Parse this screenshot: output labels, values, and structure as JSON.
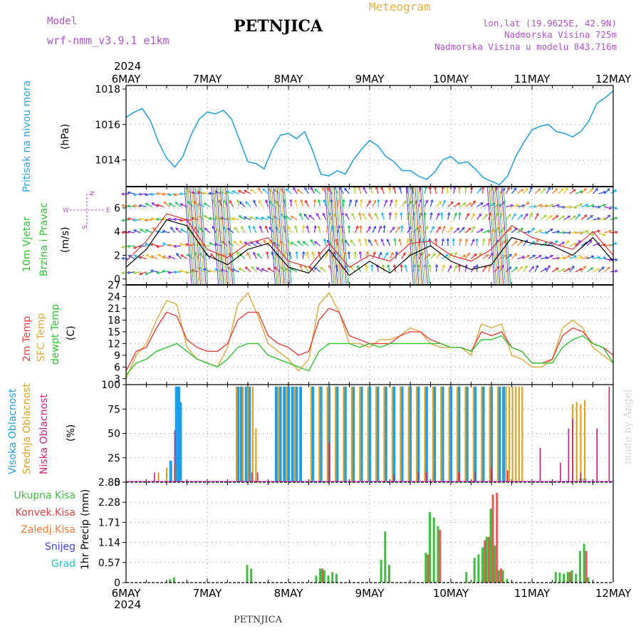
{
  "header": {
    "model_label": "Model",
    "model_name": "wrf-nmm_v3.9.1  e1km",
    "station": "PETNJICA",
    "product": "Meteogram",
    "coords": "lon,lat (19.9625E, 42.9N)",
    "elevation": "Nadmorska Visina 725m",
    "model_elevation": "Nadmorska Visina u modelu 843.716m",
    "year_top": "2024",
    "year_bottom": "2024",
    "footer_station": "PETNJICA",
    "credit": "made by Angel"
  },
  "colors": {
    "pressure": "#29a3e0",
    "temp2m": "#e8403a",
    "sfc_temp": "#e0a83a",
    "dewpt": "#2ec42e",
    "high_cloud": "#1e9ee8",
    "mid_cloud": "#e0a020",
    "low_cloud": "#d0207a",
    "total_precip": "#3cbf3c",
    "conv_precip": "#e04040",
    "grid_precip": "#f07a30",
    "snow": "#4040e0",
    "hail": "#20c0c0",
    "purple_text": "#b050d0",
    "orange_text": "#e8b040"
  },
  "x_axis": {
    "ticks": [
      "6MAY",
      "7MAY",
      "8MAY",
      "9MAY",
      "10MAY",
      "11MAY",
      "12MAY"
    ]
  },
  "panels": {
    "pressure": {
      "ylabel": "Pritisak na nivou mora",
      "unit": "(hPa)",
      "ticks": [
        "1014",
        "1016",
        "1018"
      ]
    },
    "wind": {
      "ylabel1": "10m Vjetar",
      "ylabel2": "Brzina i Pravac",
      "unit": "(m/s)",
      "ticks": [
        "0",
        "2",
        "4",
        "6"
      ],
      "compass": {
        "n": "N",
        "s": "S",
        "w": "W",
        "e": "E"
      }
    },
    "temp": {
      "label1": "2m Temp",
      "label2": "SFC Temp",
      "label3": "dewpt Temp",
      "unit": "(C)",
      "ticks": [
        "3",
        "6",
        "9",
        "12",
        "15",
        "18",
        "21",
        "24",
        "27"
      ]
    },
    "cloud": {
      "label1": "Visoka Oblacnost",
      "label2": "Srednja Oblacnost",
      "label3": "Niska Oblacnost",
      "unit": "(%)",
      "ticks": [
        "0",
        "25",
        "50",
        "75",
        "100"
      ]
    },
    "precip": {
      "legend": [
        "Ukupna Kisa",
        "Konvek.Kisa",
        "Zaledj.Kisa",
        "Snijeg",
        "Grad"
      ],
      "ylabel": "1hr Precip (mm)",
      "ticks": [
        "0",
        "0.57",
        "1.14",
        "1.71",
        "2.28",
        "2.85"
      ]
    }
  },
  "chart_data": [
    {
      "type": "line",
      "title": "Pritisak na nivou mora",
      "ylabel": "(hPa)",
      "ylim": [
        1012.5,
        1018.2
      ],
      "x_range_days": [
        6,
        12
      ],
      "x": [
        6.0,
        6.1,
        6.2,
        6.3,
        6.4,
        6.5,
        6.6,
        6.7,
        6.8,
        6.9,
        7.0,
        7.1,
        7.2,
        7.3,
        7.4,
        7.5,
        7.6,
        7.7,
        7.8,
        7.9,
        8.0,
        8.1,
        8.2,
        8.3,
        8.4,
        8.5,
        8.6,
        8.7,
        8.8,
        8.9,
        9.0,
        9.1,
        9.2,
        9.3,
        9.4,
        9.5,
        9.6,
        9.7,
        9.8,
        9.9,
        10.0,
        10.1,
        10.2,
        10.3,
        10.4,
        10.5,
        10.6,
        10.7,
        10.8,
        10.9,
        11.0,
        11.1,
        11.2,
        11.3,
        11.4,
        11.5,
        11.6,
        11.7,
        11.8,
        11.9,
        12.0
      ],
      "series": [
        {
          "values": [
            1016.4,
            1016.7,
            1016.9,
            1016.2,
            1015.0,
            1014.1,
            1013.6,
            1014.2,
            1015.4,
            1016.3,
            1016.7,
            1016.6,
            1016.8,
            1016.3,
            1015.1,
            1013.9,
            1013.8,
            1013.5,
            1014.6,
            1015.4,
            1015.5,
            1015.2,
            1015.6,
            1014.5,
            1013.2,
            1013.1,
            1013.4,
            1013.2,
            1014.0,
            1014.6,
            1015.1,
            1014.8,
            1014.2,
            1013.9,
            1013.4,
            1013.4,
            1013.1,
            1012.9,
            1013.3,
            1014.0,
            1014.2,
            1013.8,
            1013.9,
            1013.5,
            1013.0,
            1012.8,
            1012.6,
            1013.1,
            1014.2,
            1015.0,
            1015.7,
            1015.9,
            1016.0,
            1015.6,
            1015.5,
            1015.3,
            1015.6,
            1016.2,
            1017.2,
            1017.5,
            1017.9
          ]
        }
      ]
    },
    {
      "type": "line",
      "title": "10m Vjetar Brzina i Pravac",
      "ylabel": "(m/s)",
      "ylim": [
        -0.5,
        7.8
      ],
      "x_range_days": [
        6,
        12
      ],
      "x": [
        6.0,
        6.25,
        6.5,
        6.75,
        7.0,
        7.25,
        7.5,
        7.75,
        8.0,
        8.25,
        8.5,
        8.75,
        9.0,
        9.25,
        9.5,
        9.75,
        10.0,
        10.25,
        10.5,
        10.75,
        11.0,
        11.25,
        11.5,
        11.75,
        12.0
      ],
      "series": [
        {
          "name": "speed",
          "values": [
            1.0,
            2.5,
            5.0,
            4.5,
            2.0,
            1.2,
            2.5,
            3.0,
            1.0,
            0.5,
            2.5,
            0.3,
            1.5,
            0.5,
            2.0,
            2.8,
            1.5,
            0.8,
            1.2,
            3.5,
            3.0,
            2.8,
            2.0,
            3.5,
            1.5
          ]
        },
        {
          "name": "gust",
          "values": [
            1.5,
            3.2,
            5.5,
            5.0,
            2.5,
            1.8,
            3.0,
            3.5,
            1.5,
            1.0,
            3.0,
            1.0,
            2.0,
            1.5,
            3.0,
            3.2,
            2.0,
            1.5,
            2.5,
            4.5,
            3.5,
            3.0,
            2.5,
            4.0,
            2.0
          ]
        }
      ]
    },
    {
      "type": "line",
      "title": "2m Temp / SFC Temp / dewpt Temp",
      "ylabel": "(C)",
      "ylim": [
        1.5,
        27
      ],
      "x_range_days": [
        6,
        12
      ],
      "x": [
        6.0,
        6.125,
        6.25,
        6.375,
        6.5,
        6.625,
        6.75,
        6.875,
        7.0,
        7.125,
        7.25,
        7.375,
        7.5,
        7.625,
        7.75,
        7.875,
        8.0,
        8.125,
        8.25,
        8.375,
        8.5,
        8.625,
        8.75,
        8.875,
        9.0,
        9.125,
        9.25,
        9.375,
        9.5,
        9.625,
        9.75,
        9.875,
        10.0,
        10.125,
        10.25,
        10.375,
        10.5,
        10.625,
        10.75,
        10.875,
        11.0,
        11.125,
        11.25,
        11.375,
        11.5,
        11.625,
        11.75,
        11.875,
        12.0
      ],
      "series": [
        {
          "name": "2m Temp",
          "values": [
            5,
            10,
            11,
            16,
            20,
            19,
            13,
            11,
            10,
            10,
            12,
            18,
            20,
            20,
            14,
            12,
            11,
            9,
            10,
            18,
            21,
            20,
            14,
            13,
            12,
            12,
            12,
            14,
            15,
            15,
            13,
            12,
            11,
            11,
            10,
            15,
            14,
            15,
            11,
            10,
            7,
            7,
            8,
            14,
            16,
            15,
            12,
            11,
            9
          ]
        },
        {
          "name": "SFC Temp",
          "values": [
            3,
            9,
            12,
            18,
            23,
            22,
            11,
            8,
            7,
            6,
            11,
            22,
            25,
            19,
            12,
            10,
            8,
            5,
            8,
            22,
            25,
            20,
            12,
            12,
            11,
            13,
            13,
            14,
            16,
            15,
            12,
            11,
            11,
            11,
            9,
            17,
            16,
            17,
            9,
            8,
            6,
            6,
            8,
            16,
            18,
            16,
            11,
            9,
            7
          ]
        },
        {
          "name": "dewpt Temp",
          "values": [
            4,
            7,
            8,
            10,
            11,
            12,
            10,
            8,
            7,
            6,
            8,
            11,
            12,
            12,
            9,
            8,
            7,
            6,
            5,
            10,
            12,
            12,
            12,
            11,
            12,
            11,
            12,
            12,
            12,
            12,
            12,
            12,
            11,
            11,
            10,
            13,
            13,
            14,
            11,
            10,
            7,
            7,
            7,
            11,
            13,
            14,
            12,
            11,
            7
          ]
        }
      ]
    },
    {
      "type": "bar",
      "title": "Visoka / Srednja / Niska Oblacnost",
      "ylabel": "(%)",
      "ylim": [
        0,
        100
      ],
      "x_range_days": [
        6,
        12
      ],
      "series": [
        {
          "name": "Visoka Oblacnost",
          "x": [
            6.55,
            6.62,
            6.65,
            6.67,
            7.38,
            7.42,
            7.48,
            7.52,
            7.85,
            7.9,
            7.95,
            8.0,
            8.05,
            8.1,
            8.15,
            8.3,
            8.4,
            8.5,
            8.6,
            8.7,
            8.8,
            8.9,
            9.0,
            9.1,
            9.2,
            9.3,
            9.4,
            9.5,
            9.6,
            9.7,
            9.8,
            9.9,
            10.0,
            10.1,
            10.2,
            10.3,
            10.4,
            10.5,
            10.6,
            10.65,
            11.6,
            11.65
          ],
          "values": [
            22,
            98,
            98,
            82,
            98,
            98,
            98,
            98,
            98,
            98,
            98,
            98,
            98,
            98,
            98,
            98,
            98,
            98,
            98,
            98,
            98,
            98,
            98,
            98,
            98,
            98,
            98,
            98,
            98,
            98,
            98,
            98,
            98,
            98,
            98,
            98,
            98,
            98,
            98,
            98,
            4,
            4
          ]
        },
        {
          "name": "Srednja Oblacnost",
          "x": [
            6.4,
            6.5,
            6.6,
            7.36,
            7.44,
            7.5,
            7.56,
            7.6,
            7.88,
            7.98,
            8.08,
            8.28,
            8.38,
            8.48,
            8.58,
            8.68,
            8.78,
            8.88,
            8.98,
            9.08,
            9.18,
            9.28,
            9.38,
            9.48,
            9.58,
            9.68,
            9.78,
            9.88,
            9.98,
            10.08,
            10.18,
            10.28,
            10.38,
            10.48,
            10.58,
            10.68,
            10.72,
            10.76,
            10.8,
            10.84,
            10.88,
            11.5,
            11.55,
            11.6,
            11.65
          ],
          "values": [
            10,
            15,
            18,
            98,
            98,
            98,
            98,
            55,
            98,
            98,
            98,
            98,
            98,
            98,
            98,
            98,
            98,
            98,
            98,
            98,
            98,
            98,
            98,
            98,
            98,
            98,
            98,
            98,
            98,
            98,
            98,
            98,
            98,
            98,
            98,
            98,
            98,
            98,
            98,
            98,
            98,
            80,
            82,
            80,
            84
          ]
        },
        {
          "name": "Niska Oblacnost",
          "x": [
            6.35,
            6.6,
            7.55,
            7.62,
            8.5,
            9.3,
            9.6,
            9.7,
            10.1,
            10.3,
            10.5,
            10.7,
            11.1,
            11.35,
            11.45,
            11.5,
            11.6,
            11.8,
            11.95
          ],
          "values": [
            10,
            53,
            10,
            10,
            40,
            8,
            10,
            10,
            10,
            10,
            15,
            12,
            35,
            20,
            55,
            65,
            10,
            55,
            98
          ]
        }
      ]
    },
    {
      "type": "bar",
      "title": "1hr Precip",
      "ylabel": "1hr Precip (mm)",
      "ylim": [
        0,
        2.85
      ],
      "x_range_days": [
        6,
        12
      ],
      "series": [
        {
          "name": "Ukupna Kisa",
          "x": [
            6.55,
            6.6,
            7.5,
            7.55,
            8.35,
            8.4,
            8.45,
            8.5,
            8.55,
            8.6,
            9.15,
            9.2,
            9.25,
            9.7,
            9.75,
            9.8,
            9.85,
            10.2,
            10.3,
            10.35,
            10.4,
            10.45,
            10.5,
            10.55,
            10.6,
            10.65,
            10.7,
            11.3,
            11.35,
            11.4,
            11.45,
            11.5,
            11.55,
            11.6,
            11.65,
            11.7
          ],
          "values": [
            0.1,
            0.15,
            0.5,
            0.4,
            0.2,
            0.4,
            0.35,
            0.2,
            0.3,
            0.25,
            0.65,
            1.45,
            0.5,
            0.85,
            2.0,
            1.85,
            1.6,
            0.3,
            0.7,
            0.8,
            1.0,
            1.3,
            2.1,
            1.05,
            0.35,
            0.35,
            0.1,
            0.3,
            0.28,
            0.25,
            0.3,
            0.35,
            0.25,
            0.9,
            1.1,
            0.15
          ]
        },
        {
          "name": "Konvek.Kisa",
          "x": [
            8.4,
            9.7,
            9.85,
            10.4,
            10.45,
            10.5,
            10.55,
            10.6,
            11.45,
            11.65
          ],
          "values": [
            0.4,
            0.8,
            1.5,
            1.2,
            1.3,
            2.5,
            2.55,
            0.4,
            0.3,
            0.9
          ]
        }
      ]
    }
  ]
}
